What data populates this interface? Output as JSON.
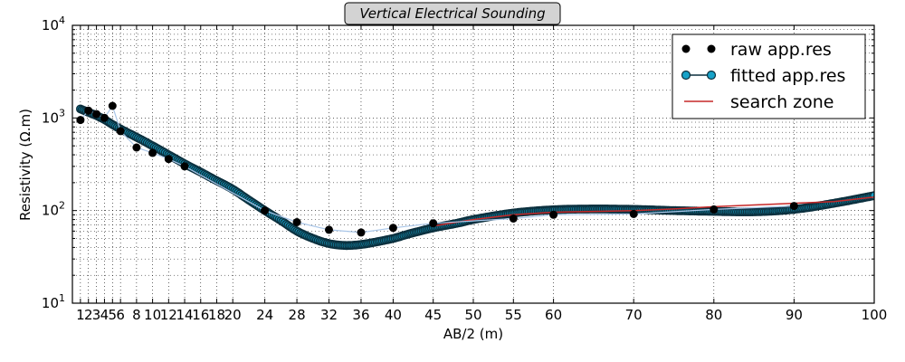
{
  "chart_data": {
    "type": "line",
    "title": "Vertical Electrical Sounding",
    "xlabel": "AB/2 (m)",
    "ylabel": "Resistivity (Ω.m)",
    "x_scale": "linear",
    "y_scale": "log",
    "xlim": [
      0,
      100
    ],
    "ylim": [
      10,
      10000
    ],
    "x_ticks": [
      1,
      2,
      3,
      4,
      5,
      6,
      8,
      10,
      12,
      14,
      16,
      18,
      20,
      24,
      28,
      32,
      36,
      40,
      45,
      50,
      55,
      60,
      70,
      80,
      90,
      100
    ],
    "y_ticks": [
      {
        "value": 10,
        "base": "10",
        "exp": "1"
      },
      {
        "value": 100,
        "base": "10",
        "exp": "2"
      },
      {
        "value": 1000,
        "base": "10",
        "exp": "3"
      },
      {
        "value": 10000,
        "base": "10",
        "exp": "4"
      }
    ],
    "grid": true,
    "legend_position": "top-right",
    "colors": {
      "raw": "#000000",
      "fitted_line": "#a9c6e8",
      "fitted_marker": "#17a2c8",
      "fitted_edge": "#0b2f3d",
      "search_zone": "#c62828"
    },
    "series": [
      {
        "name": "raw app.res",
        "style": "markers",
        "x": [
          1,
          2,
          3,
          4,
          5,
          6,
          8,
          10,
          12,
          14,
          24,
          28,
          32,
          36,
          40,
          45,
          55,
          60,
          70,
          80,
          90
        ],
        "y": [
          950,
          1200,
          1100,
          1000,
          1350,
          720,
          480,
          420,
          360,
          300,
          100,
          75,
          62,
          58,
          65,
          73,
          82,
          90,
          92,
          103,
          112
        ]
      },
      {
        "name": "fitted app.res",
        "style": "line-markers",
        "x": [
          1,
          2,
          3,
          4,
          5,
          6,
          8,
          10,
          12,
          14,
          16,
          18,
          20,
          22,
          24,
          26,
          28,
          30,
          32,
          34,
          36,
          38,
          40,
          42,
          45,
          48,
          50,
          55,
          60,
          65,
          70,
          75,
          80,
          85,
          90,
          95,
          100
        ],
        "y": [
          1250,
          1150,
          1060,
          960,
          850,
          760,
          620,
          500,
          400,
          320,
          260,
          210,
          170,
          130,
          100,
          78,
          60,
          50,
          44,
          42,
          43,
          46,
          50,
          56,
          65,
          73,
          80,
          94,
          102,
          104,
          103,
          100,
          98,
          97,
          103,
          120,
          145
        ]
      },
      {
        "name": "search zone",
        "style": "line",
        "x": [
          45,
          50,
          55,
          60,
          65,
          70,
          75,
          80,
          85,
          90,
          95,
          100
        ],
        "y": [
          68,
          80,
          90,
          96,
          98,
          100,
          104,
          110,
          115,
          120,
          125,
          140
        ]
      }
    ]
  }
}
